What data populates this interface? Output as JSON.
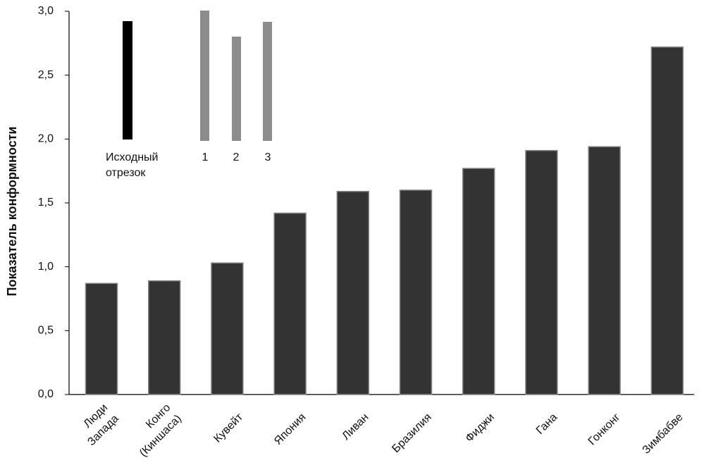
{
  "chart_data": {
    "type": "bar",
    "y_label": "Показатель конформности",
    "categories": [
      "Люди\nЗапада",
      "Конго\n(Киншаса)",
      "Кувейт",
      "Япония",
      "Ливан",
      "Бразилия",
      "Фиджи",
      "Гана",
      "Гонконг",
      "Зимбабве"
    ],
    "values": [
      0.87,
      0.89,
      1.03,
      1.42,
      1.59,
      1.6,
      1.77,
      1.91,
      1.94,
      2.72
    ],
    "color": "#333333",
    "ylim": [
      0,
      3
    ],
    "yticks": [
      {
        "value": 0,
        "label": "0,0"
      },
      {
        "value": 0.5,
        "label": "0,5"
      },
      {
        "value": 1,
        "label": "1,0"
      },
      {
        "value": 1.5,
        "label": "1,5"
      },
      {
        "value": 2,
        "label": "2,0"
      },
      {
        "value": 2.5,
        "label": "2,5"
      },
      {
        "value": 3,
        "label": "3,0"
      }
    ],
    "grid": false
  },
  "inset": {
    "reference_label": "Исходный\nотрезок",
    "line_labels": [
      "1",
      "2",
      "3"
    ]
  }
}
